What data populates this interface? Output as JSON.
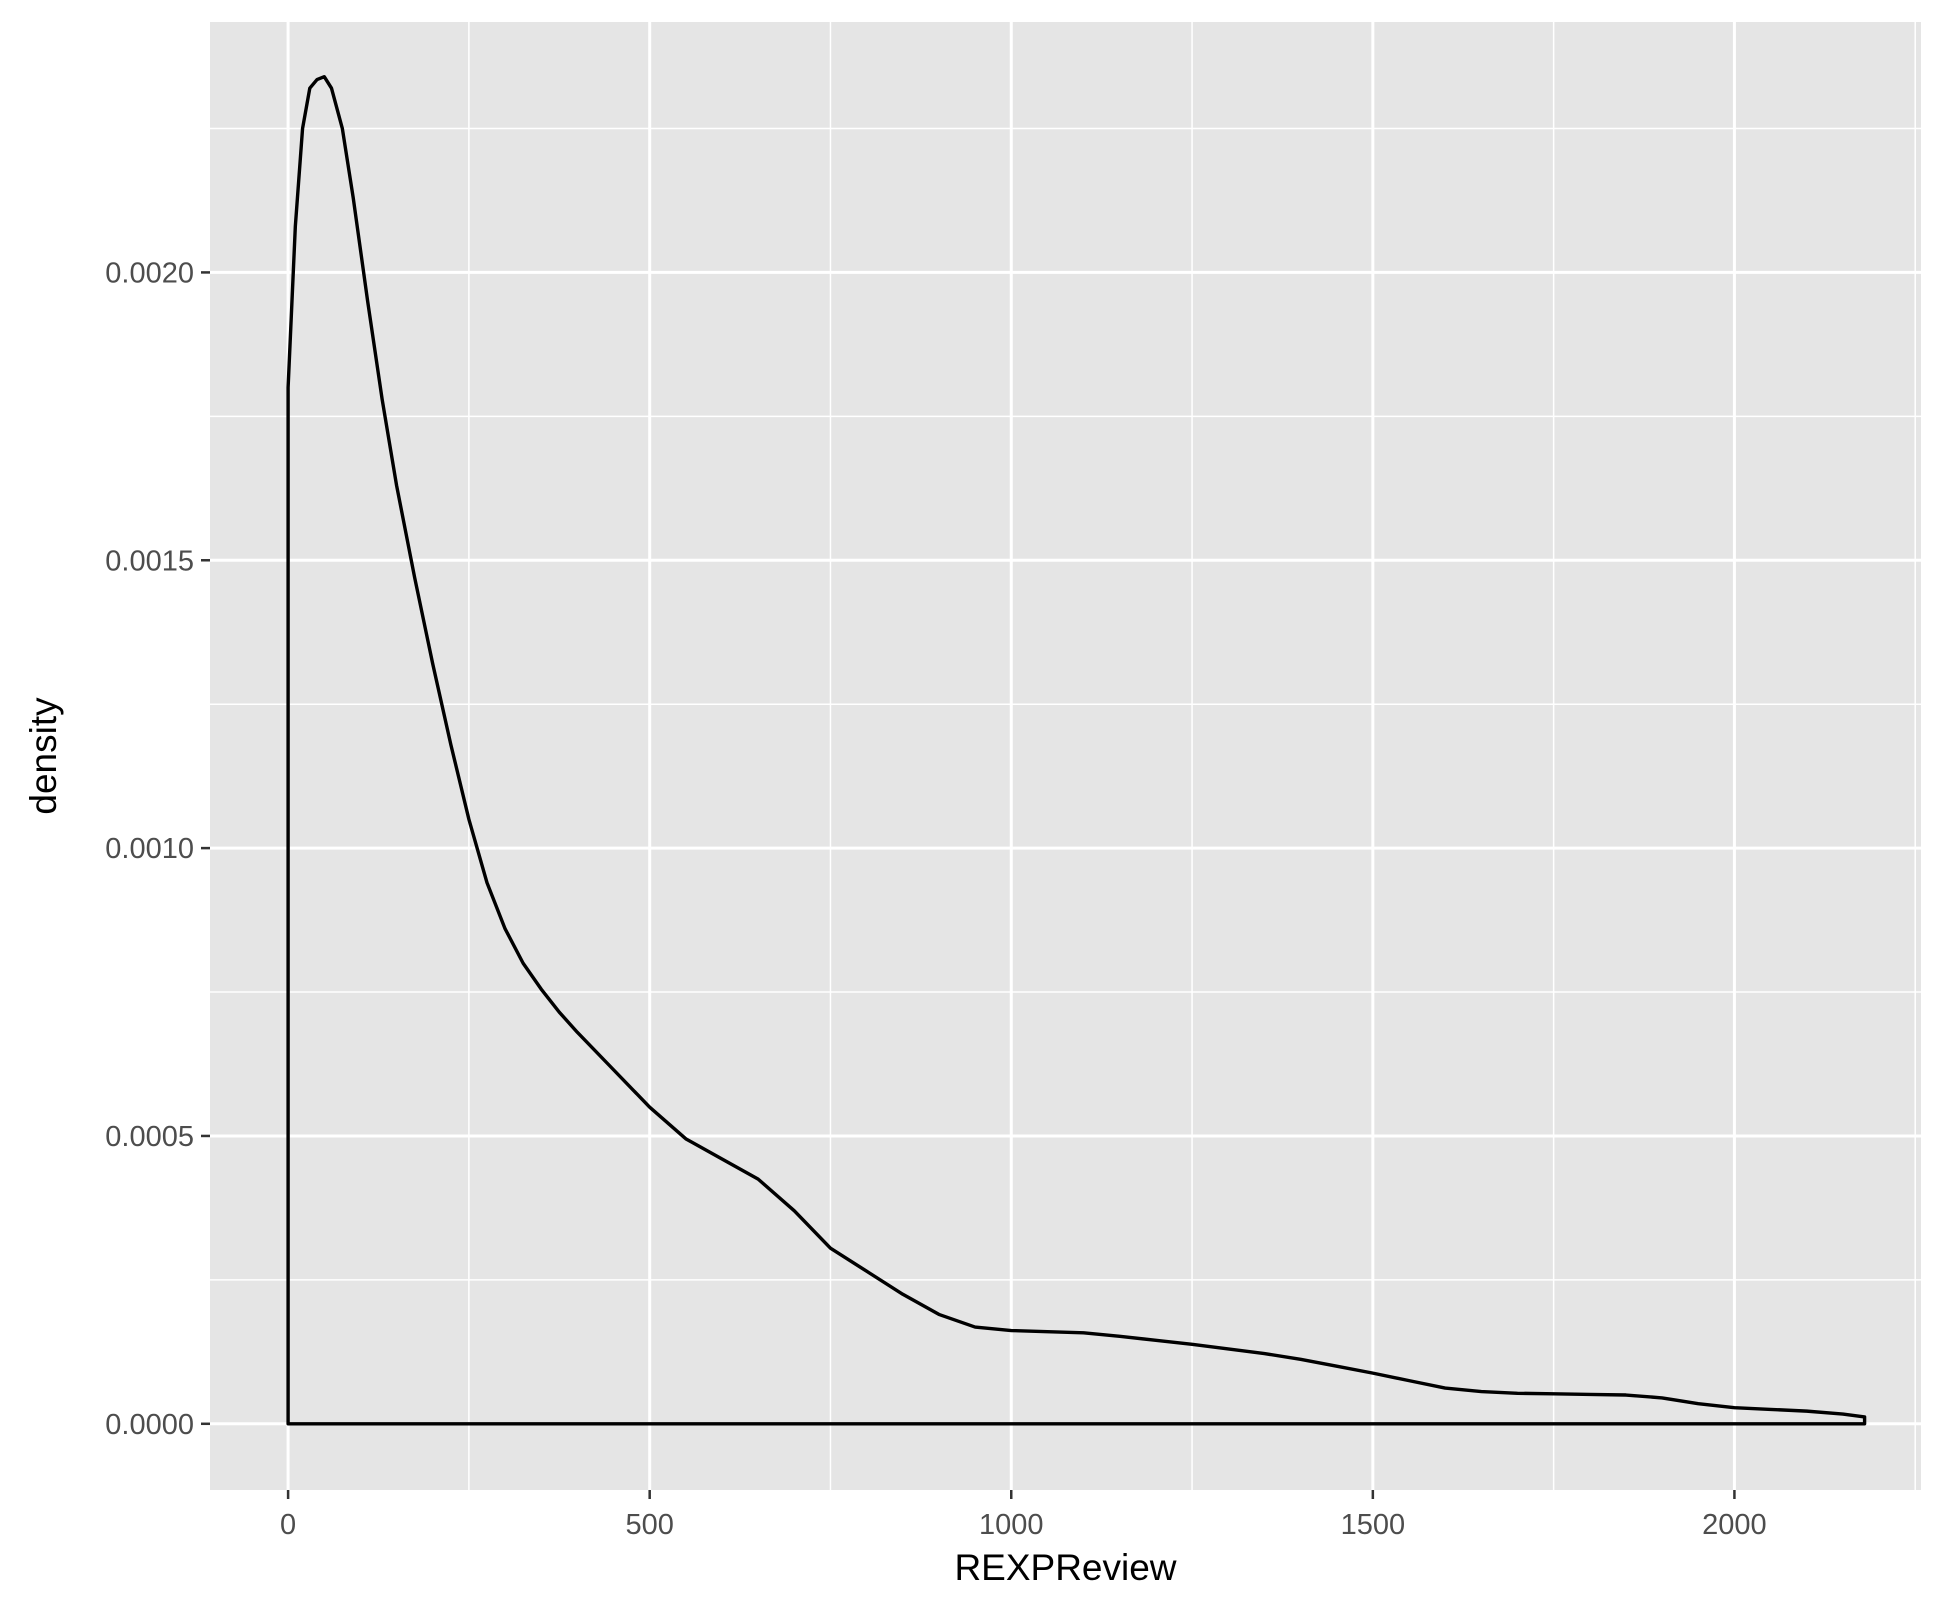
{
  "chart_data": {
    "type": "area",
    "title": "",
    "xlabel": "REXPReview",
    "ylabel": "density",
    "xlim": [
      -108,
      2258
    ],
    "ylim": [
      -0.000115,
      0.002435
    ],
    "grid": true,
    "legend": "none",
    "x_ticks": [
      0,
      500,
      1000,
      1500,
      2000
    ],
    "x_tick_labels": [
      "0",
      "500",
      "1000",
      "1500",
      "2000"
    ],
    "x_minor_ticks": [
      250,
      750,
      1250,
      1750,
      2250
    ],
    "y_ticks": [
      0,
      0.0005,
      0.001,
      0.0015,
      0.002
    ],
    "y_tick_labels": [
      "0.0000",
      "0.0005",
      "0.0010",
      "0.0015",
      "0.0020"
    ],
    "y_minor_ticks": [
      0.00025,
      0.00075,
      0.00125,
      0.00175,
      0.00225
    ],
    "series": [
      {
        "x": [
          0,
          10,
          20,
          30,
          40,
          50,
          60,
          75,
          90,
          110,
          130,
          150,
          175,
          200,
          225,
          250,
          275,
          300,
          325,
          350,
          375,
          400,
          450,
          500,
          550,
          600,
          650,
          700,
          750,
          800,
          850,
          900,
          950,
          1000,
          1050,
          1100,
          1150,
          1200,
          1250,
          1300,
          1350,
          1400,
          1450,
          1500,
          1550,
          1600,
          1650,
          1700,
          1750,
          1800,
          1850,
          1900,
          1950,
          2000,
          2050,
          2100,
          2150,
          2180
        ],
        "y": [
          0.0018,
          0.00208,
          0.00225,
          0.00232,
          0.002335,
          0.00234,
          0.00232,
          0.00225,
          0.00213,
          0.00195,
          0.00178,
          0.00163,
          0.00147,
          0.00132,
          0.00118,
          0.00105,
          0.00094,
          0.00086,
          0.0008,
          0.000755,
          0.000715,
          0.00068,
          0.000615,
          0.00055,
          0.000495,
          0.00046,
          0.000425,
          0.00037,
          0.000305,
          0.000265,
          0.000225,
          0.00019,
          0.000168,
          0.000162,
          0.00016,
          0.000158,
          0.000152,
          0.000145,
          0.000138,
          0.00013,
          0.000122,
          0.000112,
          0.0001,
          8.8e-05,
          7.5e-05,
          6.2e-05,
          5.6e-05,
          5.3e-05,
          5.2e-05,
          5.1e-05,
          5e-05,
          4.5e-05,
          3.5e-05,
          2.8e-05,
          2.5e-05,
          2.2e-05,
          1.7e-05,
          1.2e-05
        ],
        "line_color": "#000000",
        "fill": "none"
      }
    ],
    "colors": {
      "panel_background": "#e5e5e5",
      "grid_line": "#ffffff",
      "tick_label": "#4d4d4d",
      "tick_mark": "#333333",
      "curve": "#000000"
    }
  }
}
